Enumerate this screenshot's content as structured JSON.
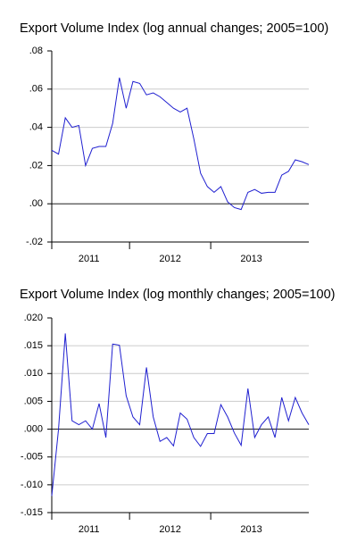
{
  "chart_data": [
    {
      "type": "line",
      "title": "Export Volume Index (log annual changes; 2005=100)",
      "x_tick_labels": [
        "2011",
        "2012",
        "2013"
      ],
      "series": [
        {
          "color": "#1f1fd0",
          "values": [
            0.028,
            0.026,
            0.045,
            0.04,
            0.041,
            0.02,
            0.029,
            0.03,
            0.03,
            0.042,
            0.066,
            0.05,
            0.064,
            0.063,
            0.057,
            0.058,
            0.056,
            0.053,
            0.05,
            0.048,
            0.05,
            0.034,
            0.016,
            0.009,
            0.006,
            0.009,
            0.001,
            -0.002,
            -0.003,
            0.006,
            0.0075,
            0.0055,
            0.006,
            0.006,
            0.015,
            0.017,
            0.023,
            0.022,
            0.0205
          ]
        }
      ],
      "ylim": [
        -0.02,
        0.08
      ],
      "yticks": [
        {
          "value": -0.02,
          "label": "-.02"
        },
        {
          "value": 0,
          "label": ".00"
        },
        {
          "value": 0.02,
          "label": ".02"
        },
        {
          "value": 0.04,
          "label": ".04"
        },
        {
          "value": 0.06,
          "label": ".06"
        },
        {
          "value": 0.08,
          "label": ".08"
        }
      ],
      "grid": true
    },
    {
      "type": "line",
      "title": "Export Volume Index (log monthly changes; 2005=100)",
      "x_tick_labels": [
        "2011",
        "2012",
        "2013"
      ],
      "series": [
        {
          "color": "#1f1fd0",
          "values": [
            -0.012,
            0.0,
            0.0172,
            0.0015,
            0.0008,
            0.0015,
            0.0,
            0.0046,
            -0.0015,
            0.0153,
            0.0151,
            0.006,
            0.0022,
            0.0008,
            0.0111,
            0.0022,
            -0.0022,
            -0.0015,
            -0.003,
            0.0029,
            0.0018,
            -0.0015,
            -0.0031,
            -0.0008,
            -0.0008,
            0.0044,
            0.0022,
            -0.0007,
            -0.0029,
            0.0073,
            -0.0015,
            0.0008,
            0.0022,
            -0.0015,
            0.0057,
            0.0015,
            0.0057,
            0.0029,
            0.0008
          ]
        }
      ],
      "ylim": [
        -0.015,
        0.02
      ],
      "yticks": [
        {
          "value": -0.015,
          "label": "-.015"
        },
        {
          "value": -0.01,
          "label": "-.010"
        },
        {
          "value": -0.005,
          "label": "-.005"
        },
        {
          "value": 0,
          "label": ".000"
        },
        {
          "value": 0.005,
          "label": ".005"
        },
        {
          "value": 0.01,
          "label": ".010"
        },
        {
          "value": 0.015,
          "label": ".015"
        },
        {
          "value": 0.02,
          "label": ".020"
        }
      ],
      "grid": true
    }
  ]
}
